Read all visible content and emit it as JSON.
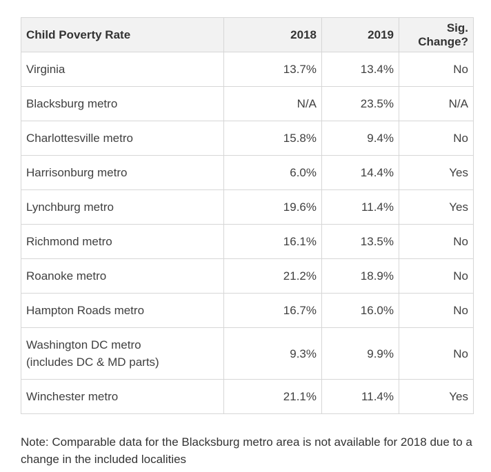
{
  "table": {
    "headers": [
      "Child Poverty Rate",
      "2018",
      "2019",
      "Sig. Change?"
    ],
    "rows": [
      {
        "name": "Virginia",
        "y2018": "13.7%",
        "y2019": "13.4%",
        "sig": "No"
      },
      {
        "name": "Blacksburg metro",
        "y2018": "N/A",
        "y2019": "23.5%",
        "sig": "N/A"
      },
      {
        "name": "Charlottesville metro",
        "y2018": "15.8%",
        "y2019": "9.4%",
        "sig": "No"
      },
      {
        "name": "Harrisonburg metro",
        "y2018": "6.0%",
        "y2019": "14.4%",
        "sig": "Yes"
      },
      {
        "name": "Lynchburg metro",
        "y2018": "19.6%",
        "y2019": "11.4%",
        "sig": "Yes"
      },
      {
        "name": "Richmond metro",
        "y2018": "16.1%",
        "y2019": "13.5%",
        "sig": "No"
      },
      {
        "name": "Roanoke metro",
        "y2018": "21.2%",
        "y2019": "18.9%",
        "sig": "No"
      },
      {
        "name": "Hampton Roads metro",
        "y2018": "16.7%",
        "y2019": "16.0%",
        "sig": "No"
      },
      {
        "name": "Washington DC metro",
        "name_line2": "(includes DC & MD parts)",
        "y2018": "9.3%",
        "y2019": "9.9%",
        "sig": "No"
      },
      {
        "name": "Winchester metro",
        "y2018": "21.1%",
        "y2019": "11.4%",
        "sig": "Yes"
      }
    ]
  },
  "note": "Note: Comparable data for the Blacksburg metro area is not available for 2018 due to a change in the included localities"
}
